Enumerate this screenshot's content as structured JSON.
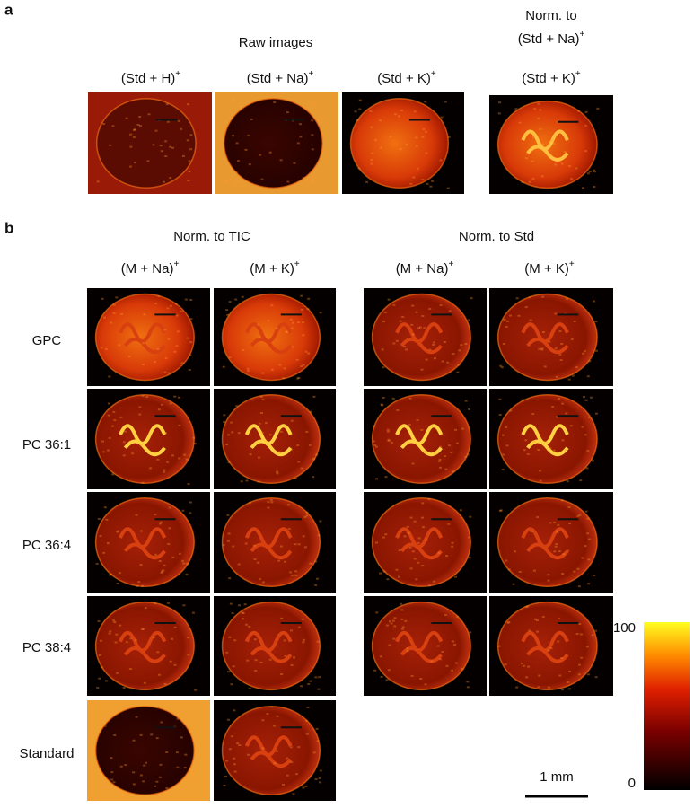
{
  "panel_a": {
    "label": "a",
    "raw_header": "Raw images",
    "norm_header": {
      "line1": "Norm. to",
      "line2": {
        "text": "(Std + Na)",
        "sup": "+"
      }
    },
    "columns": [
      {
        "text": "(Std + H)",
        "sup": "+"
      },
      {
        "text": "(Std + Na)",
        "sup": "+"
      },
      {
        "text": "(Std + K)",
        "sup": "+"
      },
      {
        "text": "(Std + K)",
        "sup": "+"
      }
    ]
  },
  "panel_b": {
    "label": "b",
    "groups": [
      {
        "title": "Norm. to TIC",
        "columns": [
          {
            "text": "(M + Na)",
            "sup": "+"
          },
          {
            "text": "(M + K)",
            "sup": "+"
          }
        ]
      },
      {
        "title": "Norm. to Std",
        "columns": [
          {
            "text": "(M + Na)",
            "sup": "+"
          },
          {
            "text": "(M + K)",
            "sup": "+"
          }
        ]
      }
    ],
    "rows": [
      "GPC",
      "PC 36:1",
      "PC 36:4",
      "PC 38:4",
      "Standard"
    ]
  },
  "scale_bar": "1 mm",
  "colorbar": {
    "ticks": [
      0,
      100
    ]
  }
}
